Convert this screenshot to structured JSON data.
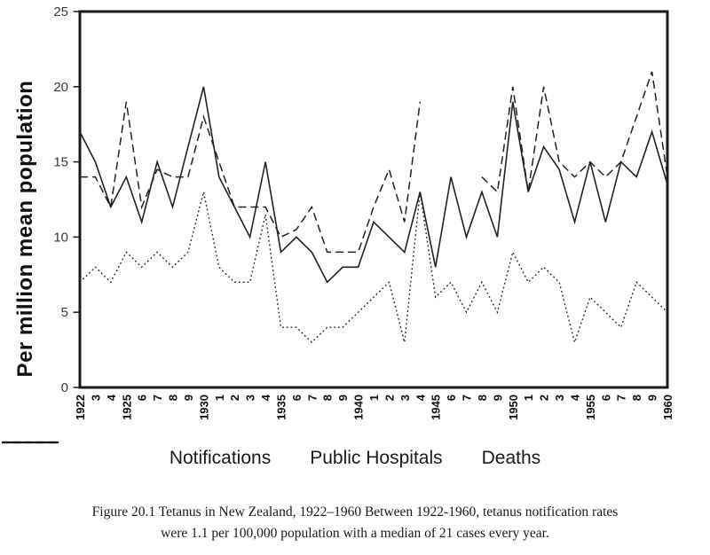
{
  "chart_data": {
    "type": "line",
    "y_axis_title": "Per million mean population",
    "ylim": [
      0,
      25
    ],
    "y_ticks": [
      0,
      5,
      10,
      15,
      20,
      25
    ],
    "grid": false,
    "legend_position": "bottom",
    "x_tick_labels": [
      "1922",
      "3",
      "4",
      "1925",
      "6",
      "7",
      "8",
      "9",
      "1930",
      "1",
      "2",
      "3",
      "4",
      "1935",
      "6",
      "7",
      "8",
      "9",
      "1940",
      "1",
      "2",
      "3",
      "4",
      "1945",
      "6",
      "7",
      "8",
      "9",
      "1950",
      "1",
      "2",
      "3",
      "4",
      "1955",
      "6",
      "7",
      "8",
      "9",
      "1960"
    ],
    "years": [
      1922,
      1923,
      1924,
      1925,
      1926,
      1927,
      1928,
      1929,
      1930,
      1931,
      1932,
      1933,
      1934,
      1935,
      1936,
      1937,
      1938,
      1939,
      1940,
      1941,
      1942,
      1943,
      1944,
      1945,
      1946,
      1947,
      1948,
      1949,
      1950,
      1951,
      1952,
      1953,
      1954,
      1955,
      1956,
      1957,
      1958,
      1959,
      1960
    ],
    "series": [
      {
        "name": "Notifications",
        "style": "solid",
        "values": [
          17,
          15,
          12,
          14,
          11,
          15,
          12,
          16,
          20,
          14,
          12,
          10,
          15,
          9,
          10,
          9,
          7,
          8,
          8,
          11,
          10,
          9,
          13,
          8,
          14,
          10,
          13,
          10,
          19,
          13,
          16,
          14.5,
          11,
          15,
          11,
          15,
          14,
          17,
          13.5
        ]
      },
      {
        "name": "Public Hospitals",
        "style": "dashed",
        "values": [
          14,
          14,
          12,
          19,
          12,
          14.5,
          14,
          14,
          18,
          15,
          12,
          12,
          12,
          10,
          10.5,
          12,
          9,
          9,
          9,
          12,
          14.5,
          11,
          19,
          null,
          null,
          null,
          14,
          13,
          20,
          13,
          20,
          15,
          14,
          15,
          14,
          15,
          18,
          21,
          14
        ]
      },
      {
        "name": "Deaths",
        "style": "dotted",
        "values": [
          7,
          8,
          7,
          9,
          8,
          9,
          8,
          9,
          13,
          8,
          7,
          7,
          11.5,
          4,
          4,
          3,
          4,
          4,
          5,
          6,
          7,
          3,
          13,
          6,
          7,
          5,
          7,
          5,
          9,
          7,
          8,
          7,
          3,
          6,
          5,
          4,
          7,
          6,
          5
        ]
      }
    ]
  },
  "legend": {
    "items": [
      {
        "label": "Notifications",
        "style": "solid"
      },
      {
        "label": "Public Hospitals",
        "style": "dashed"
      },
      {
        "label": "Deaths",
        "style": "dotted"
      }
    ]
  },
  "caption": {
    "line1": "Figure 20.1 Tetanus in New Zealand, 1922–1960 Between 1922-1960, tetanus notification rates",
    "line2": "were 1.1 per 100,000 population with a median of 21 cases every year."
  }
}
